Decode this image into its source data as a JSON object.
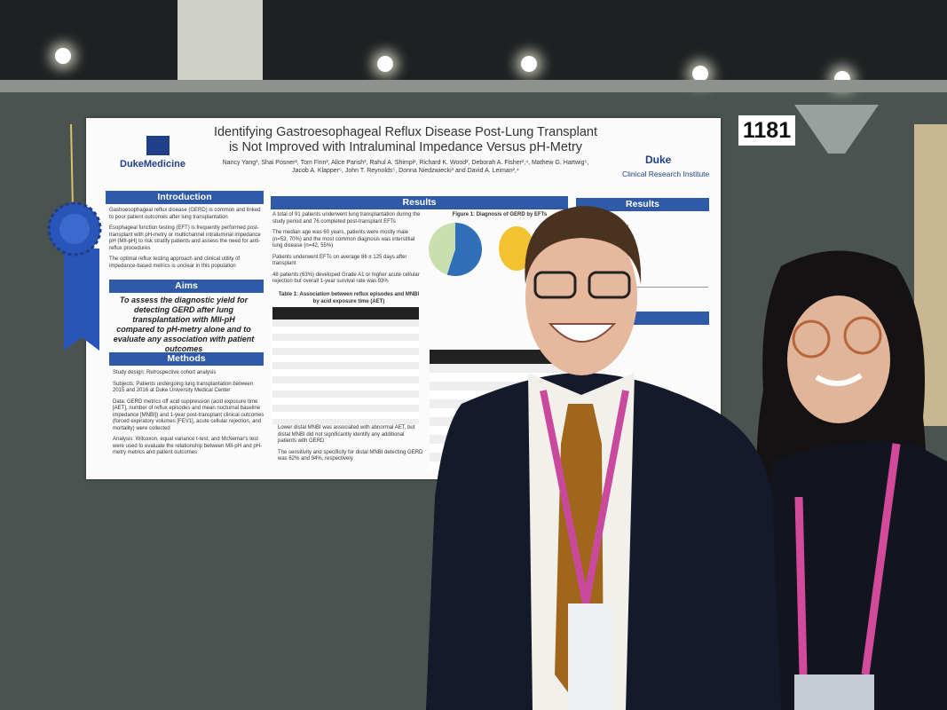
{
  "board_number": "1181",
  "poster": {
    "title": "Identifying Gastroesophageal Reflux Disease Post-Lung Transplant is Not Improved with Intraluminal Impedance Versus pH-Metry",
    "authors": "Nancy Yang¹, Shai Posner², Tom Finn², Alice Parish³, Rahul A. Shimpi², Richard K. Wood², Deborah A. Fisher²,⁴, Mathew G. Hartwig⁵, Jacob A. Klapper⁵, John T. Reynolds⁵, Donna Niedzwiecki³ and David A. Leiman²,⁴",
    "logo_left": "DukeMedicine",
    "logo_right": "Duke",
    "logo_right_sub": "Clinical Research Institute",
    "introduction": {
      "heading": "Introduction",
      "bullets": [
        "Gastroesophageal reflux disease (GERD) is common and linked to poor patient outcomes after lung transplantation",
        "Esophageal function testing (EFT) is frequently performed post-transplant with pH-metry or multichannel intraluminal impedance pH (MII-pH) to risk stratify patients and assess the need for anti-reflux procedures",
        "The optimal reflux testing approach and clinical utility of impedance-based metrics is unclear in this population"
      ]
    },
    "aims": {
      "heading": "Aims",
      "text": "To assess the diagnostic yield for detecting GERD after lung transplantation with MII-pH compared to pH-metry alone and to evaluate any association with patient outcomes"
    },
    "methods": {
      "heading": "Methods",
      "bullets": [
        "Study design: Retrospective cohort analysis",
        "Subjects: Patients undergoing lung transplantation between 2015 and 2016 at Duke University Medical Center",
        "Data: GERD metrics off acid suppression (acid exposure time [AET], number of reflux episodes and mean nocturnal baseline impedance [MNBI]) and 1-year post-transplant clinical outcomes (forced expiratory volumes [FEV1], acute cellular rejection, and mortality) were collected",
        "Analysis: Wilcoxon, equal variance t-test, and McNemar's test were used to evaluate the relationship between MII-pH and pH-metry metrics and patient outcomes"
      ]
    },
    "results": {
      "heading": "Results",
      "bullets": [
        "A total of 91 patients underwent lung transplantation during the study period and 76 completed post-transplant EFTs",
        "The median age was 60 years, patients were mostly male (n=53, 70%) and the most common diagnosis was interstitial lung disease (n=42, 55%)",
        "Patients underwent EFTs on average 86 ± 125 days after transplant",
        "48 patients (63%) developed Grade A1 or higher acute cellular rejection but overall 1-year survival rate was 93%"
      ],
      "table1_title": "Table 1: Association between reflux episodes and MNBI by acid exposure time (AET)",
      "figure1_title": "Figure 1: Diagnosis of GERD by EFTs",
      "lower_bullets": [
        "Lower distal MNBI was associated with abnormal AET, but distal MNBI did not significantly identify any additional patients with GERD",
        "The sensitivity and specificity for distal MNBI detecting GERD was 62% and 94%, respectively"
      ]
    },
    "results_right_heading": "Results"
  }
}
